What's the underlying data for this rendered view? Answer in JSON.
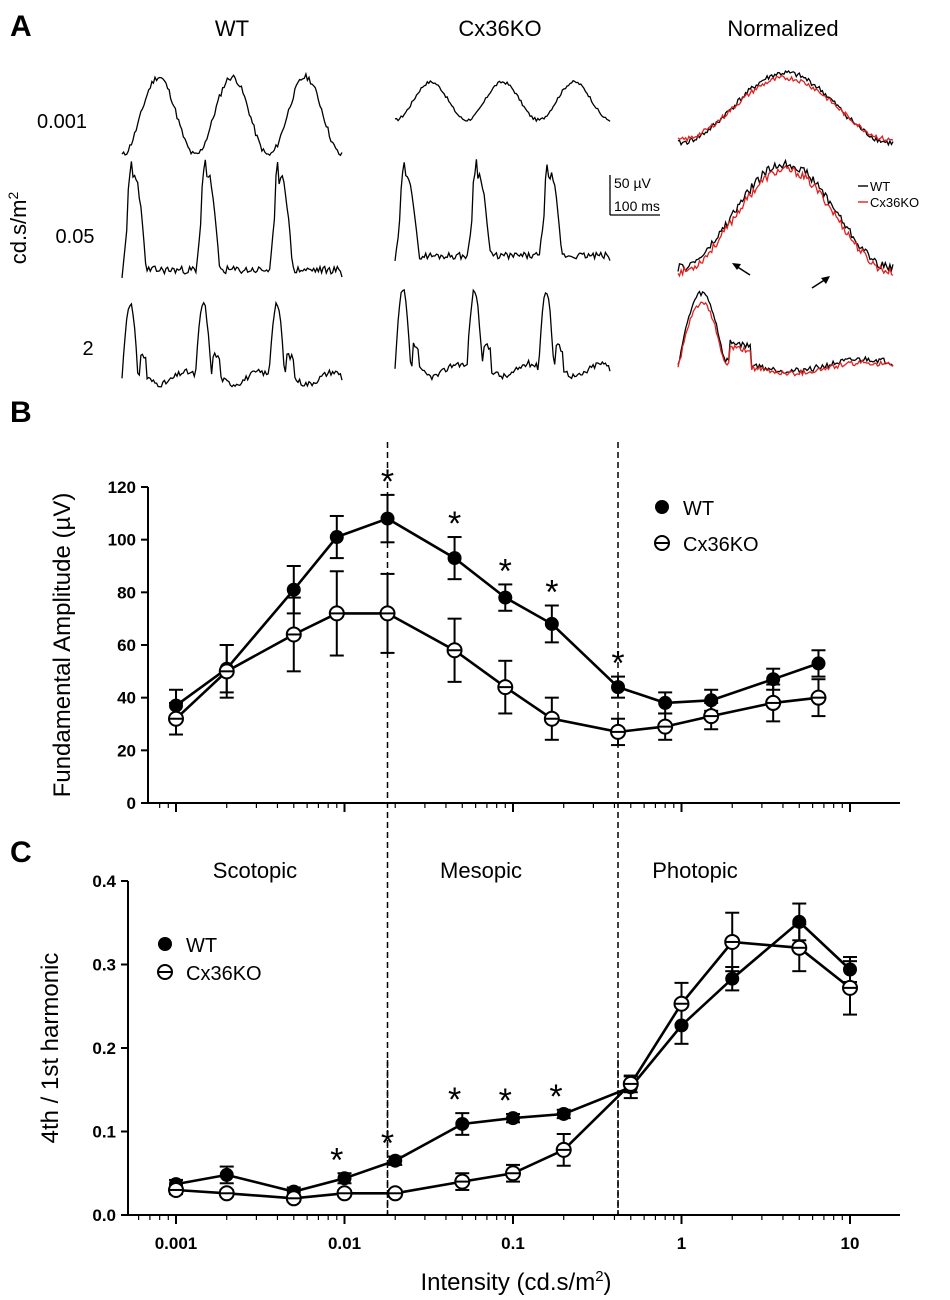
{
  "figure": {
    "panels": {
      "a": "A",
      "b": "B",
      "c": "C"
    }
  },
  "panel_a": {
    "col_titles": [
      "WT",
      "Cx36KO",
      "Normalized"
    ],
    "row_labels": [
      "0.001",
      "0.05",
      "2"
    ],
    "y_axis_label": "cd.s/m",
    "y_axis_sup": "2",
    "scale_amp": "50 µV",
    "scale_time": "100 ms",
    "legend": [
      "WT",
      "Cx36KO"
    ],
    "colors": {
      "wt": "#000000",
      "ko": "#e02020"
    }
  },
  "chart_data": [
    {
      "type": "line",
      "panel": "B",
      "xscale": "log",
      "xlim": [
        0.0005,
        20
      ],
      "ylabel": "Fundamental Amplitude (µV)",
      "ylim": [
        0,
        120
      ],
      "yticks": [
        "0",
        "20",
        "40",
        "60",
        "80",
        "100",
        "120"
      ],
      "vlines": [
        0.018,
        0.42
      ],
      "legend": [
        "WT",
        "Cx36KO"
      ],
      "legend_position": "top-right",
      "star_symbol": "*",
      "significance_x": [
        0.018,
        0.045,
        0.09,
        0.17,
        0.42
      ],
      "series": [
        {
          "name": "WT",
          "marker": "filled",
          "x": [
            0.001,
            0.002,
            0.005,
            0.009,
            0.018,
            0.045,
            0.09,
            0.17,
            0.42,
            0.8,
            1.5,
            3.5,
            6.5
          ],
          "y": [
            37,
            51,
            81,
            101,
            108,
            93,
            78,
            68,
            44,
            38,
            39,
            47,
            53
          ],
          "err": [
            6,
            9,
            9,
            8,
            9,
            8,
            5,
            7,
            4,
            4,
            4,
            4,
            5
          ]
        },
        {
          "name": "Cx36KO",
          "marker": "open",
          "x": [
            0.001,
            0.002,
            0.005,
            0.009,
            0.018,
            0.045,
            0.09,
            0.17,
            0.42,
            0.8,
            1.5,
            3.5,
            6.5
          ],
          "y": [
            32,
            50,
            64,
            72,
            72,
            58,
            44,
            32,
            27,
            29,
            33,
            38,
            40
          ],
          "err": [
            6,
            10,
            14,
            16,
            15,
            12,
            10,
            8,
            5,
            5,
            5,
            7,
            7
          ]
        }
      ]
    },
    {
      "type": "line",
      "panel": "C",
      "xscale": "log",
      "xlim": [
        0.0005,
        20
      ],
      "xlabel": "Intensity (cd.s/m",
      "xlabel_sup": "2",
      "xlabel_end": ")",
      "xticks": [
        "0.001",
        "0.01",
        "0.1",
        "1",
        "10"
      ],
      "ylabel": "4th / 1st harmonic",
      "ylim": [
        0,
        0.4
      ],
      "yticks": [
        "0.0",
        "0.1",
        "0.2",
        "0.3",
        "0.4"
      ],
      "vlines": [
        0.018,
        0.42
      ],
      "regions": [
        "Scotopic",
        "Mesopic",
        "Photopic"
      ],
      "legend": [
        "WT",
        "Cx36KO"
      ],
      "legend_position": "top-left",
      "star_symbol": "*",
      "significance_x": [
        0.009,
        0.018,
        0.045,
        0.09,
        0.18
      ],
      "series": [
        {
          "name": "WT",
          "marker": "filled",
          "x": [
            0.001,
            0.002,
            0.005,
            0.01,
            0.02,
            0.05,
            0.1,
            0.2,
            0.5,
            1,
            2,
            5,
            10
          ],
          "y": [
            0.037,
            0.048,
            0.028,
            0.044,
            0.065,
            0.109,
            0.116,
            0.121,
            0.153,
            0.227,
            0.283,
            0.351,
            0.294
          ],
          "err": [
            0.005,
            0.01,
            0.005,
            0.006,
            0.005,
            0.013,
            0.005,
            0.005,
            0.013,
            0.022,
            0.014,
            0.022,
            0.015
          ]
        },
        {
          "name": "Cx36KO",
          "marker": "open",
          "x": [
            0.001,
            0.002,
            0.005,
            0.01,
            0.02,
            0.05,
            0.1,
            0.2,
            0.5,
            1,
            2,
            5,
            10
          ],
          "y": [
            0.03,
            0.026,
            0.02,
            0.026,
            0.026,
            0.04,
            0.05,
            0.078,
            0.157,
            0.253,
            0.327,
            0.32,
            0.272
          ],
          "err": [
            0.005,
            0.004,
            0.004,
            0.004,
            0.004,
            0.01,
            0.01,
            0.019,
            0.01,
            0.025,
            0.035,
            0.028,
            0.032
          ]
        }
      ]
    }
  ]
}
